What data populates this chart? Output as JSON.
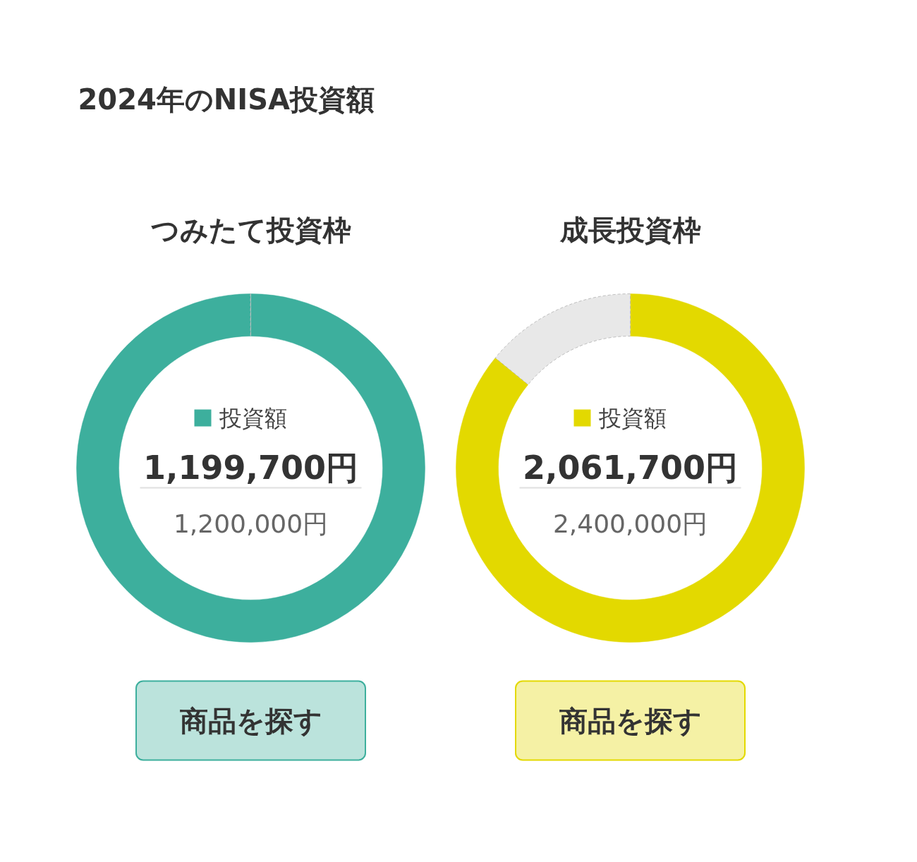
{
  "chart_data": [
    {
      "type": "donut",
      "title": "2024年のNISA投資額",
      "subtitle": "つみたて投資枠",
      "categories": [
        "投資額",
        null
      ],
      "values": [
        1199700,
        300
      ],
      "colors": [
        "#3daf9d",
        "#e8e8e8"
      ],
      "value_labels": [
        "1,199,700円",
        null
      ],
      "annotations": [
        "1,200,000円",
        "商品を探す"
      ]
    },
    {
      "type": "donut",
      "subtitle": "成長投資枠",
      "categories": [
        "投資額",
        null
      ],
      "values": [
        2061700,
        338300
      ],
      "colors": [
        "#e3d900",
        "#e8e8e8"
      ],
      "value_labels": [
        "2,061,700円",
        null
      ],
      "annotations": [
        "2,400,000円",
        "商品を探す"
      ]
    }
  ]
}
